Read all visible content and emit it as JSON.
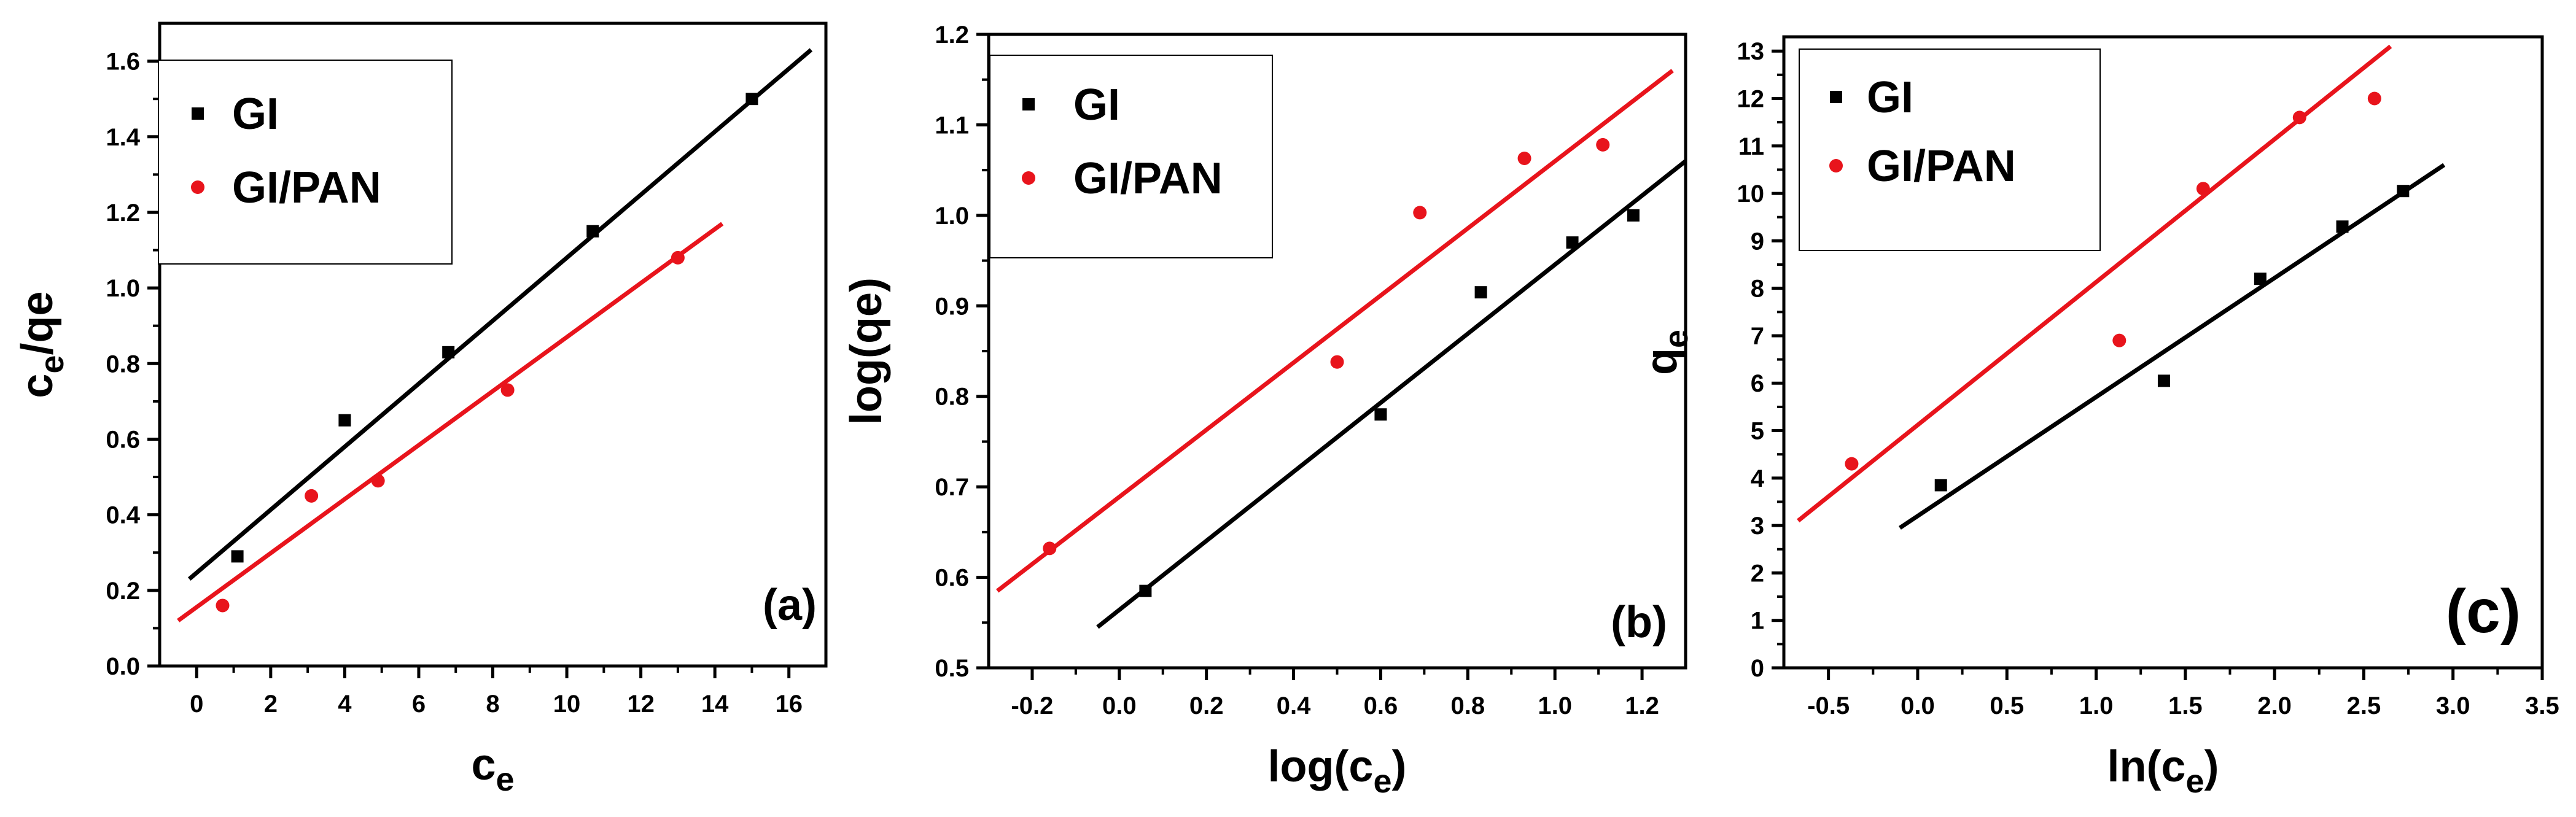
{
  "chart_data": [
    {
      "type": "scatter",
      "panel_label": "(a)",
      "xlabel": "c",
      "xlabel_sub": "e",
      "ylabel_parts": [
        {
          "t": "c",
          "sub": false
        },
        {
          "t": "e",
          "sub": true
        },
        {
          "t": "/q",
          "sub": false
        },
        {
          "t": "e",
          "sub": false
        }
      ],
      "xlim": [
        -1,
        17
      ],
      "ylim": [
        0,
        1.7
      ],
      "xticks": [
        0,
        2,
        4,
        6,
        8,
        10,
        12,
        14,
        16
      ],
      "xtick_labels": [
        "0",
        "2",
        "4",
        "6",
        "8",
        "10",
        "12",
        "14",
        "16"
      ],
      "yticks": [
        0.0,
        0.2,
        0.4,
        0.6,
        0.8,
        1.0,
        1.2,
        1.4,
        1.6
      ],
      "ytick_labels": [
        "0.0",
        "0.2",
        "0.4",
        "0.6",
        "0.8",
        "1.0",
        "1.2",
        "1.4",
        "1.6"
      ],
      "legend": "top-left",
      "series": [
        {
          "name": "GI",
          "color": "#000000",
          "marker": "square",
          "x": [
            1.1,
            4.0,
            6.8,
            10.7,
            15.0
          ],
          "y": [
            0.29,
            0.65,
            0.83,
            1.15,
            1.5
          ],
          "fit": {
            "x": [
              -0.2,
              16.6
            ],
            "y": [
              0.23,
              1.63
            ]
          }
        },
        {
          "name": "GI/PAN",
          "color": "#e8141c",
          "marker": "circle",
          "x": [
            0.7,
            3.1,
            4.9,
            8.4,
            13.0
          ],
          "y": [
            0.16,
            0.45,
            0.49,
            0.73,
            1.08
          ],
          "fit": {
            "x": [
              -0.5,
              14.2
            ],
            "y": [
              0.12,
              1.17
            ]
          }
        }
      ]
    },
    {
      "type": "scatter",
      "panel_label": "(b)",
      "xlabel": "log(c",
      "xlabel_sub": "e",
      "xlabel_after": ")",
      "ylabel_parts": [
        {
          "t": "log(q",
          "sub": false
        },
        {
          "t": "e",
          "sub": false
        },
        {
          "t": ")",
          "sub": false
        }
      ],
      "xlim": [
        -0.3,
        1.3
      ],
      "ylim": [
        0.5,
        1.2
      ],
      "xticks": [
        -0.2,
        0.0,
        0.2,
        0.4,
        0.6,
        0.8,
        1.0,
        1.2
      ],
      "xtick_labels": [
        "-0.2",
        "0.0",
        "0.2",
        "0.4",
        "0.6",
        "0.8",
        "1.0",
        "1.2"
      ],
      "yticks": [
        0.5,
        0.6,
        0.7,
        0.8,
        0.9,
        1.0,
        1.1,
        1.2
      ],
      "ytick_labels": [
        "0.5",
        "0.6",
        "0.7",
        "0.8",
        "0.9",
        "1.0",
        "1.1",
        "1.2"
      ],
      "legend": "top-left",
      "series": [
        {
          "name": "GI",
          "color": "#000000",
          "marker": "square",
          "x": [
            0.06,
            0.6,
            0.83,
            1.04,
            1.18
          ],
          "y": [
            0.585,
            0.78,
            0.915,
            0.97,
            1.0
          ],
          "fit": {
            "x": [
              -0.05,
              1.3
            ],
            "y": [
              0.545,
              1.06
            ]
          }
        },
        {
          "name": "GI/PAN",
          "color": "#e8141c",
          "marker": "circle",
          "x": [
            -0.16,
            0.5,
            0.69,
            0.93,
            1.11
          ],
          "y": [
            0.632,
            0.838,
            1.003,
            1.063,
            1.078
          ],
          "fit": {
            "x": [
              -0.28,
              1.27
            ],
            "y": [
              0.585,
              1.16
            ]
          }
        }
      ]
    },
    {
      "type": "scatter",
      "panel_label": "(c)",
      "xlabel": "ln(c",
      "xlabel_sub": "e",
      "xlabel_after": ")",
      "ylabel_parts": [
        {
          "t": "q",
          "sub": false
        },
        {
          "t": "e",
          "sub": true
        }
      ],
      "xlim": [
        -0.75,
        3.5
      ],
      "ylim": [
        0,
        13.3
      ],
      "xticks": [
        -0.5,
        0.0,
        0.5,
        1.0,
        1.5,
        2.0,
        2.5,
        3.0,
        3.5
      ],
      "xtick_labels": [
        "-0.5",
        "0.0",
        "0.5",
        "1.0",
        "1.5",
        "2.0",
        "2.5",
        "3.0",
        "3.5"
      ],
      "yticks": [
        0,
        1,
        2,
        3,
        4,
        5,
        6,
        7,
        8,
        9,
        10,
        11,
        12,
        13
      ],
      "ytick_labels": [
        "0",
        "1",
        "2",
        "3",
        "4",
        "5",
        "6",
        "7",
        "8",
        "9",
        "10",
        "11",
        "12",
        "13"
      ],
      "legend": "top-left",
      "series": [
        {
          "name": "GI",
          "color": "#000000",
          "marker": "square",
          "x": [
            0.13,
            1.38,
            1.92,
            2.38,
            2.72
          ],
          "y": [
            3.85,
            6.05,
            8.2,
            9.3,
            10.05
          ],
          "fit": {
            "x": [
              -0.1,
              2.95
            ],
            "y": [
              2.95,
              10.6
            ]
          }
        },
        {
          "name": "GI/PAN",
          "color": "#e8141c",
          "marker": "circle",
          "x": [
            -0.37,
            1.13,
            1.6,
            2.14,
            2.56
          ],
          "y": [
            4.3,
            6.9,
            10.1,
            11.6,
            12.0
          ],
          "fit": {
            "x": [
              -0.67,
              2.65
            ],
            "y": [
              3.1,
              13.1
            ]
          }
        }
      ]
    }
  ]
}
